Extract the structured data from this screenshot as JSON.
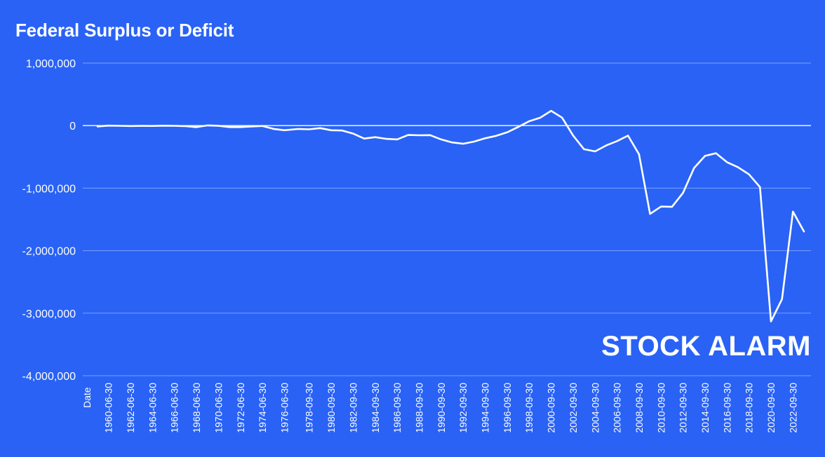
{
  "colors": {
    "background": "#2962f5",
    "line": "#ffffff",
    "grid": "#7aa0ff",
    "zero_line": "#ffffff"
  },
  "brand": {
    "text": "STOCK ALARM"
  },
  "chart_data": {
    "type": "line",
    "title": "Federal Surplus or Deficit",
    "xlabel": "Date",
    "ylabel": "",
    "ylim": [
      -4000000,
      1000000
    ],
    "yticks": [
      1000000,
      0,
      -1000000,
      -2000000,
      -3000000,
      -4000000
    ],
    "ytick_labels": [
      "1,000,000",
      "0",
      "-1,000,000",
      "-2,000,000",
      "-3,000,000",
      "-4,000,000"
    ],
    "grid": true,
    "legend": "none",
    "xtick_labels": [
      "1960-06-30",
      "1962-06-30",
      "1964-06-30",
      "1966-06-30",
      "1968-06-30",
      "1970-06-30",
      "1972-06-30",
      "1974-06-30",
      "1976-06-30",
      "1978-09-30",
      "1980-09-30",
      "1982-09-30",
      "1984-09-30",
      "1986-09-30",
      "1988-09-30",
      "1990-09-30",
      "1992-09-30",
      "1994-09-30",
      "1996-09-30",
      "1998-09-30",
      "2000-09-30",
      "2002-09-30",
      "2004-09-30",
      "2006-09-30",
      "2008-09-30",
      "2010-09-30",
      "2012-09-30",
      "2014-09-30",
      "2016-09-30",
      "2018-09-30",
      "2020-09-30",
      "2022-09-30"
    ],
    "x": [
      "1959-06-30",
      "1960-06-30",
      "1961-06-30",
      "1962-06-30",
      "1963-06-30",
      "1964-06-30",
      "1965-06-30",
      "1966-06-30",
      "1967-06-30",
      "1968-06-30",
      "1969-06-30",
      "1970-06-30",
      "1971-06-30",
      "1972-06-30",
      "1973-06-30",
      "1974-06-30",
      "1975-06-30",
      "1976-06-30",
      "1977-09-30",
      "1978-09-30",
      "1979-09-30",
      "1980-09-30",
      "1981-09-30",
      "1982-09-30",
      "1983-09-30",
      "1984-09-30",
      "1985-09-30",
      "1986-09-30",
      "1987-09-30",
      "1988-09-30",
      "1989-09-30",
      "1990-09-30",
      "1991-09-30",
      "1992-09-30",
      "1993-09-30",
      "1994-09-30",
      "1995-09-30",
      "1996-09-30",
      "1997-09-30",
      "1998-09-30",
      "1999-09-30",
      "2000-09-30",
      "2001-09-30",
      "2002-09-30",
      "2003-09-30",
      "2004-09-30",
      "2005-09-30",
      "2006-09-30",
      "2007-09-30",
      "2008-09-30",
      "2009-09-30",
      "2010-09-30",
      "2011-09-30",
      "2012-09-30",
      "2013-09-30",
      "2014-09-30",
      "2015-09-30",
      "2016-09-30",
      "2017-09-30",
      "2018-09-30",
      "2019-09-30",
      "2020-09-30",
      "2021-09-30",
      "2022-09-30",
      "2023-09-30"
    ],
    "series": [
      {
        "values": [
          -13000,
          300,
          -3300,
          -7100,
          -4800,
          -5900,
          -1400,
          -3700,
          -8600,
          -25200,
          3200,
          -2800,
          -23000,
          -23400,
          -14900,
          -6100,
          -53200,
          -73700,
          -53700,
          -59200,
          -40700,
          -73800,
          -79000,
          -128000,
          -207800,
          -185400,
          -212300,
          -221200,
          -149700,
          -155200,
          -152600,
          -221000,
          -269200,
          -290300,
          -255100,
          -203200,
          -164000,
          -107400,
          -21900,
          69300,
          125600,
          236200,
          128200,
          -157800,
          -377600,
          -412700,
          -318300,
          -248200,
          -160700,
          -458600,
          -1412700,
          -1294400,
          -1299600,
          -1076600,
          -679800,
          -484600,
          -442000,
          -584700,
          -665700,
          -779100,
          -983600,
          -3131900,
          -2775300,
          -1375500,
          -1694000
        ]
      }
    ]
  }
}
